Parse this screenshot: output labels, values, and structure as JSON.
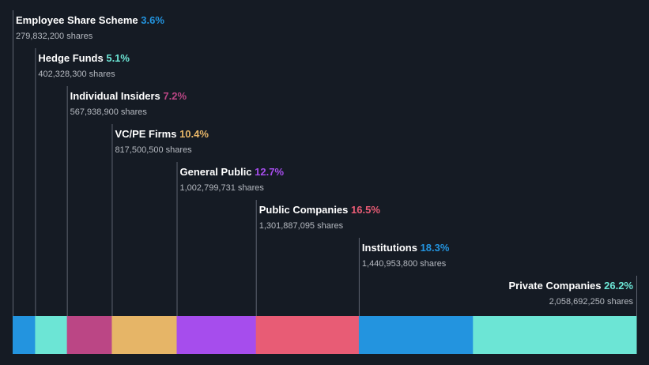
{
  "chart_data": {
    "type": "bar",
    "orientation": "horizontal-stacked",
    "title": "",
    "xlabel": "",
    "ylabel": "",
    "categories": [
      "Employee Share Scheme",
      "Hedge Funds",
      "Individual Insiders",
      "VC/PE Firms",
      "General Public",
      "Public Companies",
      "Institutions",
      "Private Companies"
    ],
    "values": [
      3.6,
      5.1,
      7.2,
      10.4,
      12.7,
      16.5,
      18.3,
      26.2
    ],
    "percent_labels": [
      "3.6%",
      "5.1%",
      "7.2%",
      "10.4%",
      "12.7%",
      "16.5%",
      "18.3%",
      "26.2%"
    ],
    "shares_labels": [
      "279,832,200 shares",
      "402,328,300 shares",
      "567,938,900 shares",
      "817,500,500 shares",
      "1,002,799,731 shares",
      "1,301,887,095 shares",
      "1,440,953,800 shares",
      "2,058,692,250 shares"
    ],
    "colors": [
      "#2394df",
      "#6ce5d5",
      "#bb4685",
      "#e6b567",
      "#a64ded",
      "#e85c75",
      "#2394df",
      "#6ce5d5"
    ],
    "xlim": [
      0,
      100
    ]
  }
}
